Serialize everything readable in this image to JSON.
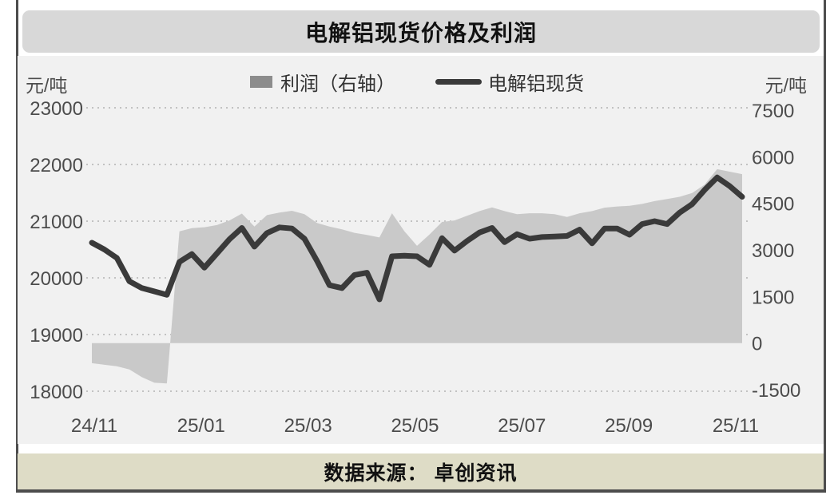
{
  "header": {
    "title": "电解铝现货价格及利润"
  },
  "legend": {
    "profit_label": "利润（右轴）",
    "price_label": "电解铝现货"
  },
  "axes": {
    "left": {
      "unit": "元/吨",
      "ticks": [
        23000,
        22000,
        21000,
        20000,
        19000,
        18000
      ]
    },
    "right": {
      "unit": "元/吨",
      "ticks": [
        7500,
        6000,
        4500,
        3000,
        1500,
        0,
        -1500
      ]
    },
    "x": {
      "ticks": [
        "24/11",
        "25/01",
        "25/03",
        "25/05",
        "25/07",
        "25/09",
        "25/11"
      ]
    }
  },
  "footer": {
    "source": "数据来源： 卓创资讯"
  },
  "colors": {
    "page_bg": "#ffffff",
    "chart_bg": "#f1f1f1",
    "title_bar_bg": "#d8d8d8",
    "footer_bg": "#dedcc6",
    "border": "#4d4d4d",
    "gridline": "#c2c2c2",
    "axis_label": "#4c4c4c",
    "area_fill": "#c9c9c9",
    "line_stroke": "#3a3a3a",
    "legend_swatch": "#8c8c8c"
  },
  "chart_data": {
    "type": "line+area",
    "title": "电解铝现货价格及利润",
    "x_tick_labels": [
      "24/11",
      "25/01",
      "25/03",
      "25/05",
      "25/07",
      "25/09",
      "25/11"
    ],
    "x_sampling": "weekly, Nov 2024 - Nov 2025",
    "left_ylabel": "元/吨",
    "right_ylabel": "元/吨",
    "left_ylim": [
      18000,
      23000
    ],
    "right_ylim": [
      -1500,
      7500
    ],
    "grid": "horizontal dotted, left-axis ticks",
    "legend_position": "top-center",
    "series": [
      {
        "name": "电解铝现货",
        "type": "line",
        "axis": "left",
        "values": [
          20620,
          20500,
          20350,
          19940,
          19820,
          19760,
          19700,
          20280,
          20420,
          20180,
          20430,
          20680,
          20880,
          20550,
          20790,
          20890,
          20870,
          20690,
          20300,
          19870,
          19820,
          20050,
          20090,
          19620,
          20380,
          20390,
          20380,
          20230,
          20700,
          20480,
          20650,
          20800,
          20880,
          20630,
          20770,
          20690,
          20720,
          20730,
          20740,
          20850,
          20610,
          20870,
          20870,
          20760,
          20950,
          21000,
          20950,
          21150,
          21300,
          21550,
          21770,
          21620,
          21430
        ]
      },
      {
        "name": "利润（右轴）",
        "type": "area",
        "axis": "right",
        "baseline": 0,
        "values": [
          -650,
          -700,
          -750,
          -850,
          -1100,
          -1280,
          -1300,
          3600,
          3700,
          3730,
          3800,
          3950,
          4170,
          3750,
          4120,
          4200,
          4260,
          4150,
          3870,
          3750,
          3660,
          3550,
          3480,
          3400,
          4180,
          3600,
          3130,
          3500,
          3900,
          3950,
          4100,
          4250,
          4370,
          4250,
          4150,
          4180,
          4180,
          4150,
          4060,
          4180,
          4250,
          4360,
          4400,
          4420,
          4480,
          4570,
          4640,
          4710,
          4830,
          5100,
          5600,
          5520,
          5440
        ]
      }
    ]
  }
}
